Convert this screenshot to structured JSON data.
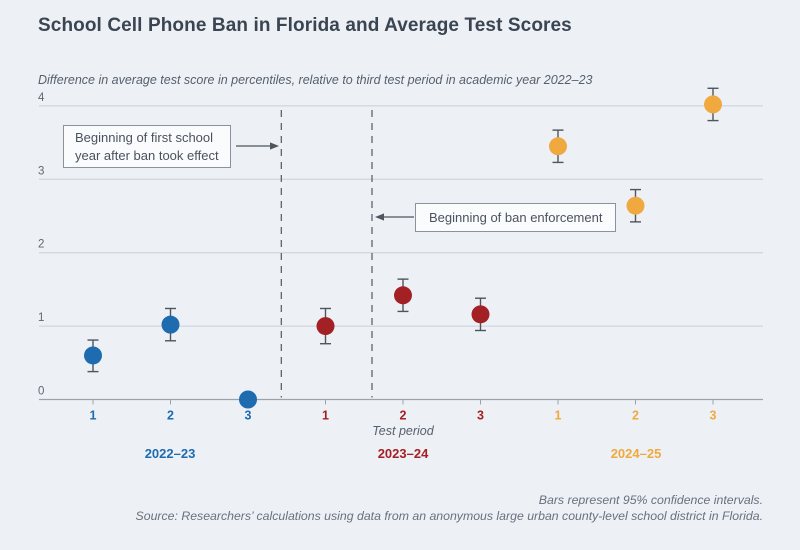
{
  "chart_data": {
    "type": "scatter",
    "title": "School Cell Phone Ban in Florida and Average Test Scores",
    "subtitle": "Difference in average test score in percentiles, relative to third test period in academic year 2022–23",
    "xlabel": "Test period",
    "ylim": [
      0,
      4
    ],
    "y_ticks": [
      0,
      1,
      2,
      3,
      4
    ],
    "grid": true,
    "legend_position": "below-axis-year-groups",
    "series": [
      {
        "name": "2022–23",
        "color": "#1e6bb0",
        "points": [
          {
            "test_period": "1",
            "value": 0.6,
            "ci_low": 0.38,
            "ci_high": 0.81
          },
          {
            "test_period": "2",
            "value": 1.02,
            "ci_low": 0.8,
            "ci_high": 1.24
          },
          {
            "test_period": "3",
            "value": 0.0,
            "ci_low": null,
            "ci_high": null
          }
        ]
      },
      {
        "name": "2023–24",
        "color": "#a32025",
        "points": [
          {
            "test_period": "1",
            "value": 1.0,
            "ci_low": 0.76,
            "ci_high": 1.24
          },
          {
            "test_period": "2",
            "value": 1.42,
            "ci_low": 1.2,
            "ci_high": 1.64
          },
          {
            "test_period": "3",
            "value": 1.16,
            "ci_low": 0.94,
            "ci_high": 1.38
          }
        ]
      },
      {
        "name": "2024–25",
        "color": "#f0a93e",
        "points": [
          {
            "test_period": "1",
            "value": 3.45,
            "ci_low": 3.23,
            "ci_high": 3.67
          },
          {
            "test_period": "2",
            "value": 2.64,
            "ci_low": 2.42,
            "ci_high": 2.86
          },
          {
            "test_period": "3",
            "value": 4.02,
            "ci_low": 3.8,
            "ci_high": 4.24
          }
        ]
      }
    ],
    "reference_lines": [
      {
        "x_slot": 2.43
      },
      {
        "x_slot": 3.6
      }
    ],
    "annotations": [
      {
        "lines": [
          "Beginning of first school",
          "year after ban took effect"
        ],
        "arrow_direction": "right"
      },
      {
        "lines": [
          "Beginning of ban enforcement"
        ],
        "arrow_direction": "left"
      }
    ]
  },
  "footnotes": {
    "line1": "Bars represent 95% confidence intervals.",
    "line2": "Source: Researchers’ calculations using data from an anonymous large urban county-level school district in Florida."
  },
  "colors": {
    "background": "#edf1f6",
    "title_text": "#3b4552",
    "muted_text": "#5d6773",
    "gridline": "#c9d0d8",
    "axis_line": "#9aa3ad",
    "error_bar": "#4e555e",
    "reference_line": "#5a6470",
    "annotation_border": "#8b929b",
    "annotation_bg": "#fafbfd",
    "series_2022_23": "#1e6bb0",
    "series_2023_24": "#a32025",
    "series_2024_25": "#f0a93e"
  }
}
